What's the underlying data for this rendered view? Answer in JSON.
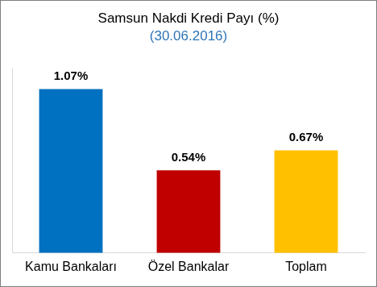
{
  "chart_data": {
    "type": "bar",
    "title": "Samsun Nakdi Kredi Payı (%)",
    "subtitle": "(30.06.2016)",
    "categories": [
      "Kamu Bankaları",
      "Özel Bankalar",
      "Toplam"
    ],
    "values": [
      1.07,
      0.54,
      0.67
    ],
    "value_labels": [
      "1.07%",
      "0.54%",
      "0.67%"
    ],
    "colors": [
      "#0070c0",
      "#c00000",
      "#ffc000"
    ],
    "ylim": [
      0,
      1.2
    ],
    "grid": false,
    "data_labels": true,
    "tick_labels": "x"
  }
}
